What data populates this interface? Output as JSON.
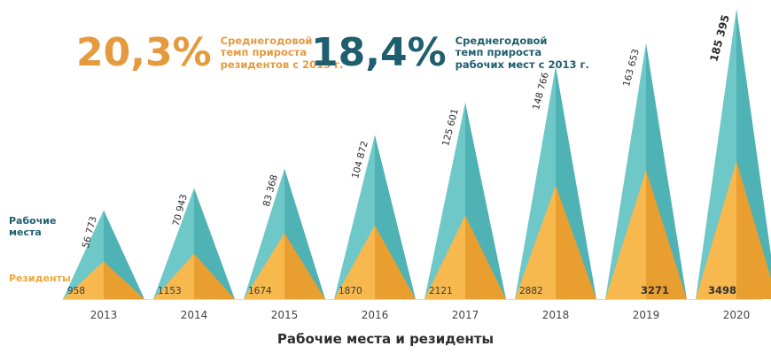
{
  "kpis": {
    "residents": {
      "value": "20,3%",
      "line1": "Среднегодовой",
      "line2": "темп прироста",
      "line3": "резидентов с 2013 г."
    },
    "jobs": {
      "value": "18,4%",
      "line1": "Среднегодовой",
      "line2": "темп прироста",
      "line3": "рабочих мест с 2013 г."
    }
  },
  "legend": {
    "jobs_line1": "Рабочие",
    "jobs_line2": "места",
    "residents": "Резиденты"
  },
  "colors": {
    "jobs": "#6fc8c8",
    "jobs_dark": "#4fb2b5",
    "residents": "#f7b84e",
    "residents_dark": "#e99e30",
    "kpi_orange": "#e59a3e",
    "kpi_teal": "#1f5e6e",
    "axis_text": "#444444"
  },
  "chart_data": {
    "type": "bar",
    "title": "Рабочие места и резиденты",
    "categories": [
      "2013",
      "2014",
      "2015",
      "2016",
      "2017",
      "2018",
      "2019",
      "2020"
    ],
    "series": [
      {
        "name": "Рабочие места",
        "values": [
          56773,
          70943,
          83368,
          104872,
          125601,
          148766,
          163653,
          185395
        ],
        "labels": [
          "56 773",
          "70 943",
          "83 368",
          "104 872",
          "125 601",
          "148 766",
          "163 653",
          "185 395"
        ]
      },
      {
        "name": "Резиденты",
        "values": [
          958,
          1153,
          1674,
          1870,
          2121,
          2882,
          3271,
          3498
        ],
        "labels": [
          "958",
          "1153",
          "1674",
          "1870",
          "2121",
          "2882",
          "3271",
          "3498"
        ]
      }
    ],
    "xlabel": "",
    "ylabel": "",
    "grid": false,
    "legend": "left"
  }
}
